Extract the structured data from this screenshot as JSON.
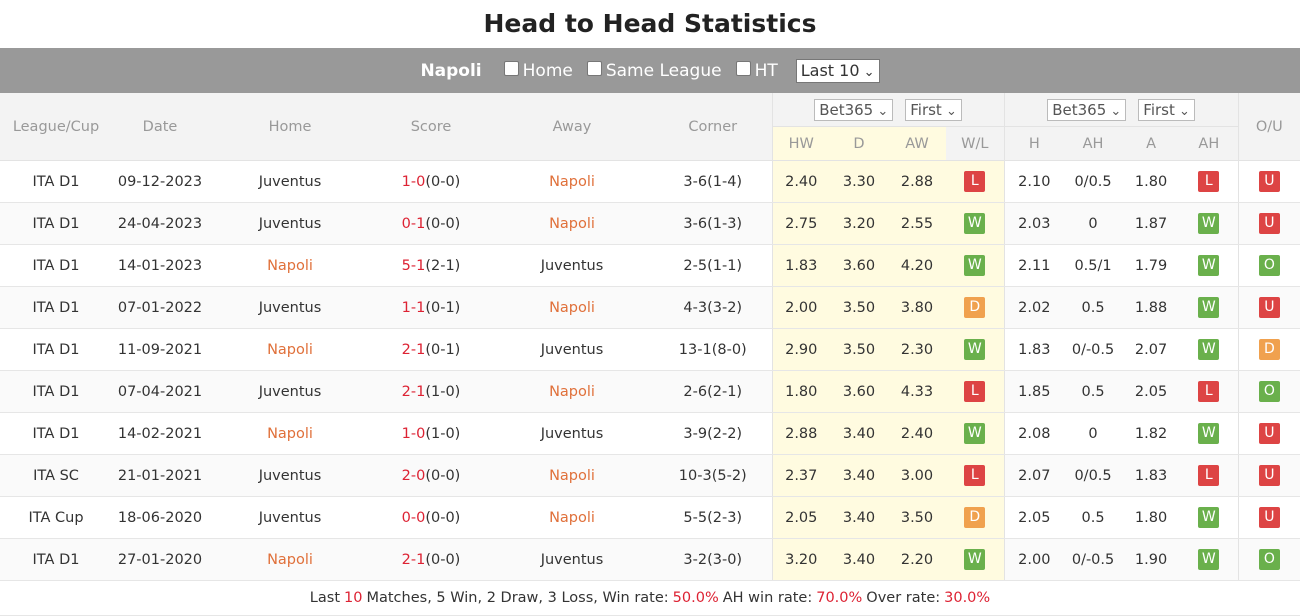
{
  "title": "Head to Head Statistics",
  "filter": {
    "team": "Napoli",
    "options": [
      "Home",
      "Same League",
      "HT"
    ],
    "select": "Last 10"
  },
  "header": {
    "columns": [
      "League/Cup",
      "Date",
      "Home",
      "Score",
      "Away",
      "Corner"
    ],
    "odds1": {
      "company": "Bet365",
      "type": "First",
      "cols": [
        "HW",
        "D",
        "AW",
        "W/L"
      ]
    },
    "odds2": {
      "company": "Bet365",
      "type": "First",
      "cols": [
        "H",
        "AH",
        "A",
        "AH"
      ]
    },
    "ou": "O/U"
  },
  "rows": [
    [
      "ITA D1",
      "09-12-2023",
      "Juventus",
      "1-0",
      "(0-0)",
      "Napoli",
      "3-6(1-4)",
      "2.40",
      "3.30",
      "2.88",
      "L",
      "2.10",
      "0/0.5",
      "1.80",
      "L",
      "U"
    ],
    [
      "ITA D1",
      "24-04-2023",
      "Juventus",
      "0-1",
      "(0-0)",
      "Napoli",
      "3-6(1-3)",
      "2.75",
      "3.20",
      "2.55",
      "W",
      "2.03",
      "0",
      "1.87",
      "W",
      "U"
    ],
    [
      "ITA D1",
      "14-01-2023",
      "Napoli",
      "5-1",
      "(2-1)",
      "Juventus",
      "2-5(1-1)",
      "1.83",
      "3.60",
      "4.20",
      "W",
      "2.11",
      "0.5/1",
      "1.79",
      "W",
      "O"
    ],
    [
      "ITA D1",
      "07-01-2022",
      "Juventus",
      "1-1",
      "(0-1)",
      "Napoli",
      "4-3(3-2)",
      "2.00",
      "3.50",
      "3.80",
      "D",
      "2.02",
      "0.5",
      "1.88",
      "W",
      "U"
    ],
    [
      "ITA D1",
      "11-09-2021",
      "Napoli",
      "2-1",
      "(0-1)",
      "Juventus",
      "13-1(8-0)",
      "2.90",
      "3.50",
      "2.30",
      "W",
      "1.83",
      "0/-0.5",
      "2.07",
      "W",
      "D"
    ],
    [
      "ITA D1",
      "07-04-2021",
      "Juventus",
      "2-1",
      "(1-0)",
      "Napoli",
      "2-6(2-1)",
      "1.80",
      "3.60",
      "4.33",
      "L",
      "1.85",
      "0.5",
      "2.05",
      "L",
      "O"
    ],
    [
      "ITA D1",
      "14-02-2021",
      "Napoli",
      "1-0",
      "(1-0)",
      "Juventus",
      "3-9(2-2)",
      "2.88",
      "3.40",
      "2.40",
      "W",
      "2.08",
      "0",
      "1.82",
      "W",
      "U"
    ],
    [
      "ITA SC",
      "21-01-2021",
      "Juventus",
      "2-0",
      "(0-0)",
      "Napoli",
      "10-3(5-2)",
      "2.37",
      "3.40",
      "3.00",
      "L",
      "2.07",
      "0/0.5",
      "1.83",
      "L",
      "U"
    ],
    [
      "ITA Cup",
      "18-06-2020",
      "Juventus",
      "0-0",
      "(0-0)",
      "Napoli",
      "5-5(2-3)",
      "2.05",
      "3.40",
      "3.50",
      "D",
      "2.05",
      "0.5",
      "1.80",
      "W",
      "U"
    ],
    [
      "ITA D1",
      "27-01-2020",
      "Napoli",
      "2-1",
      "(0-0)",
      "Juventus",
      "3-2(3-0)",
      "3.20",
      "3.40",
      "2.20",
      "W",
      "2.00",
      "0/-0.5",
      "1.90",
      "W",
      "O"
    ]
  ],
  "summary": {
    "prefix": "Last",
    "count": "10",
    "text": "Matches, 5 Win, 2 Draw, 3 Loss, Win rate:",
    "win_rate": "50.0%",
    "ah_label": "AH win rate:",
    "ah_win_rate": "70.0%",
    "over_label": "Over rate:",
    "over_rate": "30.0%"
  }
}
